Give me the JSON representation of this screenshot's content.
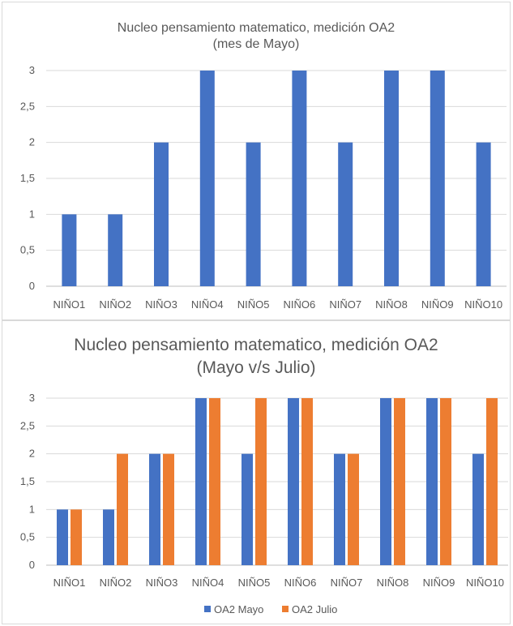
{
  "chart_data": [
    {
      "type": "bar",
      "title": "Nucleo pensamiento matematico, medición OA2",
      "subtitle": "(mes de Mayo)",
      "categories": [
        "NIÑO1",
        "NIÑO2",
        "NIÑO3",
        "NIÑO4",
        "NIÑO5",
        "NIÑO6",
        "NIÑO7",
        "NIÑO8",
        "NIÑO9",
        "NIÑO10"
      ],
      "series": [
        {
          "values": [
            1,
            1,
            2,
            3,
            2,
            3,
            2,
            3,
            3,
            2
          ],
          "color": "#4472C4"
        }
      ],
      "y_ticks": [
        "0",
        "0,5",
        "1",
        "1,5",
        "2",
        "2,5",
        "3"
      ],
      "ylim": [
        0,
        3
      ],
      "grid": true,
      "legend": "none"
    },
    {
      "type": "bar",
      "title": "Nucleo pensamiento matematico, medición OA2",
      "subtitle": "(Mayo v/s Julio)",
      "categories": [
        "NIÑO1",
        "NIÑO2",
        "NIÑO3",
        "NIÑO4",
        "NIÑO5",
        "NIÑO6",
        "NIÑO7",
        "NIÑO8",
        "NIÑO9",
        "NIÑO10"
      ],
      "series": [
        {
          "name": "OA2 Mayo",
          "values": [
            1,
            1,
            2,
            3,
            2,
            3,
            2,
            3,
            3,
            2
          ],
          "color": "#4472C4"
        },
        {
          "name": "OA2 Julio",
          "values": [
            1,
            2,
            2,
            3,
            3,
            3,
            2,
            3,
            3,
            3
          ],
          "color": "#ED7D31"
        }
      ],
      "y_ticks": [
        "0",
        "0,5",
        "1",
        "1,5",
        "2",
        "2,5",
        "3"
      ],
      "ylim": [
        0,
        3
      ],
      "grid": true,
      "legend": "bottom"
    }
  ]
}
